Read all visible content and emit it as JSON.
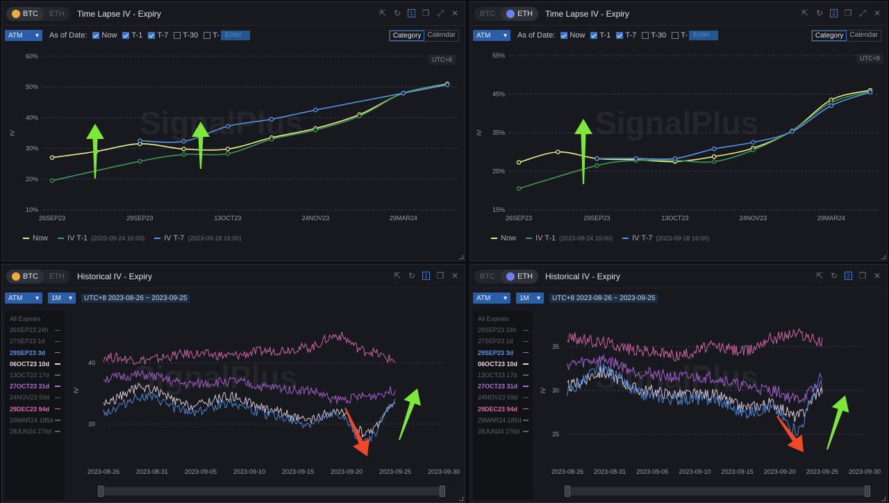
{
  "panels": {
    "btc_timelapse": {
      "coins": [
        "BTC",
        "ETH"
      ],
      "active_coin": "BTC",
      "title": "Time Lapse IV - Expiry",
      "window_number": "1",
      "atm": "ATM",
      "as_of_label": "As of Date:",
      "checks": [
        {
          "label": "Now",
          "checked": true
        },
        {
          "label": "T-1",
          "checked": true
        },
        {
          "label": "T-7",
          "checked": true
        },
        {
          "label": "T-30",
          "checked": false
        },
        {
          "label": "T-",
          "checked": false
        }
      ],
      "enter_placeholder": "Enter",
      "view_modes": [
        "Category",
        "Calendar"
      ],
      "active_view": "Category",
      "timezone": "UTC+8",
      "watermark": "SignalPlus",
      "legend": {
        "now": "Now",
        "t1": "IV T-1",
        "t1_date": "(2023-09-24 16:00)",
        "t7": "IV T-7",
        "t7_date": "(2023-09-18 16:00)"
      }
    },
    "eth_timelapse": {
      "coins": [
        "BTC",
        "ETH"
      ],
      "active_coin": "ETH",
      "title": "Time Lapse IV - Expiry",
      "window_number": "2",
      "atm": "ATM",
      "as_of_label": "As of Date:",
      "checks": [
        {
          "label": "Now",
          "checked": true
        },
        {
          "label": "T-1",
          "checked": true
        },
        {
          "label": "T-7",
          "checked": true
        },
        {
          "label": "T-30",
          "checked": false
        },
        {
          "label": "T-",
          "checked": false
        }
      ],
      "enter_placeholder": "Enter",
      "view_modes": [
        "Category",
        "Calendar"
      ],
      "active_view": "Category",
      "timezone": "UTC+8",
      "watermark": "SignalPlus",
      "legend": {
        "now": "Now",
        "t1": "IV T-1",
        "t1_date": "(2023-09-24 16:00)",
        "t7": "IV T-7",
        "t7_date": "(2023-09-18 16:00)"
      }
    },
    "btc_historical": {
      "coins": [
        "BTC",
        "ETH"
      ],
      "active_coin": "BTC",
      "title": "Historical IV - Expiry",
      "window_number": "1",
      "atm": "ATM",
      "period": "1M",
      "range": "UTC+8 2023-08-26 ~ 2023-09-25",
      "watermark": "SignalPlus",
      "expiries": [
        {
          "label": "All Expiries",
          "color": "#5f646c",
          "dash": false
        },
        {
          "label": "26SEP23 24h",
          "color": "#5f646c",
          "dash": true
        },
        {
          "label": "27SEP23 1d",
          "color": "#5f646c",
          "dash": true
        },
        {
          "label": "29SEP23 3d",
          "color": "#5b95e8",
          "dash": true
        },
        {
          "label": "06OCT23 10d",
          "color": "#e8d6e0",
          "dash": true
        },
        {
          "label": "13OCT23 17d",
          "color": "#5f646c",
          "dash": true
        },
        {
          "label": "27OCT23 31d",
          "color": "#b36fe0",
          "dash": true
        },
        {
          "label": "24NOV23 59d",
          "color": "#5f646c",
          "dash": true
        },
        {
          "label": "29DEC23 94d",
          "color": "#e06aa8",
          "dash": true
        },
        {
          "label": "29MAR24 185d",
          "color": "#5f646c",
          "dash": true
        },
        {
          "label": "28JUN24 276d",
          "color": "#5f646c",
          "dash": true
        }
      ]
    },
    "eth_historical": {
      "coins": [
        "BTC",
        "ETH"
      ],
      "active_coin": "ETH",
      "title": "Historical IV - Expiry",
      "window_number": "2",
      "atm": "ATM",
      "period": "1M",
      "range": "UTC+8 2023-08-26 ~ 2023-09-25",
      "watermark": "SignalPlus",
      "expiries": [
        {
          "label": "All Expiries",
          "color": "#5f646c",
          "dash": false
        },
        {
          "label": "26SEP23 24h",
          "color": "#5f646c",
          "dash": true
        },
        {
          "label": "27SEP23 1d",
          "color": "#5f646c",
          "dash": true
        },
        {
          "label": "29SEP23 3d",
          "color": "#5b95e8",
          "dash": true
        },
        {
          "label": "06OCT23 10d",
          "color": "#e8d6e0",
          "dash": true
        },
        {
          "label": "13OCT23 17d",
          "color": "#5f646c",
          "dash": true
        },
        {
          "label": "27OCT23 31d",
          "color": "#b36fe0",
          "dash": true
        },
        {
          "label": "24NOV23 59d",
          "color": "#5f646c",
          "dash": true
        },
        {
          "label": "29DEC23 94d",
          "color": "#e06aa8",
          "dash": true
        },
        {
          "label": "29MAR24 185d",
          "color": "#5f646c",
          "dash": true
        },
        {
          "label": "28JUN24 276d",
          "color": "#5f646c",
          "dash": true
        }
      ]
    }
  },
  "colors": {
    "now": "#eef28a",
    "t1": "#3f9a52",
    "t7": "#5b95e8",
    "up_arrow": "#7ee83a",
    "down_arrow": "#f0492a"
  },
  "chart_data": [
    {
      "type": "line",
      "id": "btc_timelapse",
      "ylabel": "IV",
      "y_ticks": [
        "60%",
        "50%",
        "40%",
        "30%",
        "20%",
        "10%"
      ],
      "ylim": [
        10,
        60
      ],
      "categories": [
        "26SEP23",
        "27SEP23",
        "29SEP23",
        "06OCT23",
        "13OCT23",
        "27OCT23",
        "24NOV23",
        "29DEC23",
        "29MAR24",
        "28JUN24"
      ],
      "x_tick_labels": [
        "26SEP23",
        "29SEP23",
        "13OCT23",
        "24NOV23",
        "29MAR24"
      ],
      "series": [
        {
          "name": "Now",
          "values": [
            27.0,
            29.0,
            31.5,
            29.8,
            29.8,
            33.5,
            36.5,
            41.0,
            48.0,
            51.0
          ]
        },
        {
          "name": "IV T-1",
          "values": [
            19.5,
            null,
            25.8,
            28.0,
            28.3,
            33.0,
            36.0,
            40.5,
            48.0,
            50.8
          ]
        },
        {
          "name": "IV T-7",
          "values": [
            null,
            null,
            32.5,
            32.3,
            37.2,
            39.5,
            42.5,
            null,
            48.0,
            50.7
          ]
        }
      ]
    },
    {
      "type": "line",
      "id": "eth_timelapse",
      "ylabel": "IV",
      "y_ticks": [
        "55%",
        "45%",
        "35%",
        "25%",
        "15%"
      ],
      "ylim": [
        15,
        55
      ],
      "categories": [
        "26SEP23",
        "27SEP23",
        "29SEP23",
        "06OCT23",
        "13OCT23",
        "27OCT23",
        "24NOV23",
        "29DEC23",
        "29MAR24",
        "28JUN24"
      ],
      "x_tick_labels": [
        "26SEP23",
        "29SEP23",
        "13OCT23",
        "24NOV23",
        "29MAR24"
      ],
      "series": [
        {
          "name": "Now",
          "values": [
            27.3,
            30.0,
            28.3,
            28.0,
            27.5,
            28.8,
            31.0,
            35.5,
            43.5,
            46.0
          ]
        },
        {
          "name": "IV T-1",
          "values": [
            20.5,
            null,
            26.5,
            27.8,
            27.8,
            27.5,
            30.5,
            35.5,
            42.8,
            45.7
          ]
        },
        {
          "name": "IV T-7",
          "values": [
            null,
            null,
            28.3,
            28.3,
            28.3,
            30.8,
            32.5,
            35.3,
            42.0,
            45.5
          ]
        }
      ]
    },
    {
      "type": "line",
      "id": "btc_historical",
      "ylabel": "IV",
      "y_ticks": [
        "40",
        "30"
      ],
      "ylim": [
        24,
        47
      ],
      "x_tick_labels": [
        "2023-08-26",
        "2023-08-31",
        "2023-09-05",
        "2023-09-10",
        "2023-09-15",
        "2023-09-20",
        "2023-09-25",
        "2023-09-30"
      ],
      "series": [
        {
          "name": "29DEC23 94d",
          "x": [
            "2023-08-26",
            "2023-08-30",
            "2023-09-04",
            "2023-09-08",
            "2023-09-12",
            "2023-09-16",
            "2023-09-19",
            "2023-09-22",
            "2023-09-25"
          ],
          "values": [
            41.0,
            40.5,
            41.5,
            41.2,
            42.0,
            42.5,
            44.5,
            42.0,
            40.5
          ]
        },
        {
          "name": "27OCT23 31d",
          "x": [
            "2023-08-26",
            "2023-08-30",
            "2023-09-04",
            "2023-09-08",
            "2023-09-12",
            "2023-09-16",
            "2023-09-19",
            "2023-09-22",
            "2023-09-25"
          ],
          "values": [
            37.5,
            38.0,
            36.5,
            37.0,
            36.0,
            35.5,
            34.0,
            34.5,
            35.5
          ]
        },
        {
          "name": "06OCT23 10d",
          "x": [
            "2023-08-26",
            "2023-08-30",
            "2023-09-04",
            "2023-09-08",
            "2023-09-12",
            "2023-09-16",
            "2023-09-19",
            "2023-09-22",
            "2023-09-25"
          ],
          "values": [
            33.5,
            36.0,
            33.0,
            34.5,
            32.5,
            30.5,
            32.0,
            28.5,
            33.0
          ]
        },
        {
          "name": "29SEP23 3d",
          "x": [
            "2023-08-26",
            "2023-08-30",
            "2023-09-04",
            "2023-09-08",
            "2023-09-12",
            "2023-09-16",
            "2023-09-19",
            "2023-09-22",
            "2023-09-25"
          ],
          "values": [
            32.0,
            34.5,
            32.0,
            33.5,
            31.5,
            30.0,
            31.5,
            27.0,
            33.5
          ]
        }
      ]
    },
    {
      "type": "line",
      "id": "eth_historical",
      "ylabel": "IV",
      "y_ticks": [
        "35",
        "30",
        "25"
      ],
      "ylim": [
        22,
        38
      ],
      "x_tick_labels": [
        "2023-08-26",
        "2023-08-31",
        "2023-09-05",
        "2023-09-10",
        "2023-09-15",
        "2023-09-20",
        "2023-09-25",
        "2023-09-30"
      ],
      "series": [
        {
          "name": "29DEC23 94d",
          "x": [
            "2023-08-26",
            "2023-08-30",
            "2023-09-04",
            "2023-09-08",
            "2023-09-12",
            "2023-09-16",
            "2023-09-19",
            "2023-09-22",
            "2023-09-25"
          ],
          "values": [
            36.0,
            35.5,
            34.5,
            34.0,
            35.0,
            34.5,
            36.0,
            36.5,
            35.5
          ]
        },
        {
          "name": "27OCT23 31d",
          "x": [
            "2023-08-26",
            "2023-08-30",
            "2023-09-04",
            "2023-09-08",
            "2023-09-12",
            "2023-09-16",
            "2023-09-19",
            "2023-09-22",
            "2023-09-25"
          ],
          "values": [
            33.0,
            33.5,
            32.0,
            31.5,
            31.5,
            30.5,
            30.0,
            29.0,
            30.5
          ]
        },
        {
          "name": "06OCT23 10d",
          "x": [
            "2023-08-26",
            "2023-08-30",
            "2023-09-04",
            "2023-09-08",
            "2023-09-12",
            "2023-09-16",
            "2023-09-19",
            "2023-09-22",
            "2023-09-25"
          ],
          "values": [
            30.5,
            32.0,
            30.0,
            29.5,
            29.5,
            28.0,
            28.5,
            27.0,
            30.0
          ]
        },
        {
          "name": "29SEP23 3d",
          "x": [
            "2023-08-26",
            "2023-08-30",
            "2023-09-04",
            "2023-09-08",
            "2023-09-12",
            "2023-09-16",
            "2023-09-19",
            "2023-09-22",
            "2023-09-25"
          ],
          "values": [
            30.0,
            32.5,
            29.5,
            29.0,
            29.0,
            27.5,
            28.0,
            25.5,
            31.5
          ]
        }
      ]
    }
  ]
}
